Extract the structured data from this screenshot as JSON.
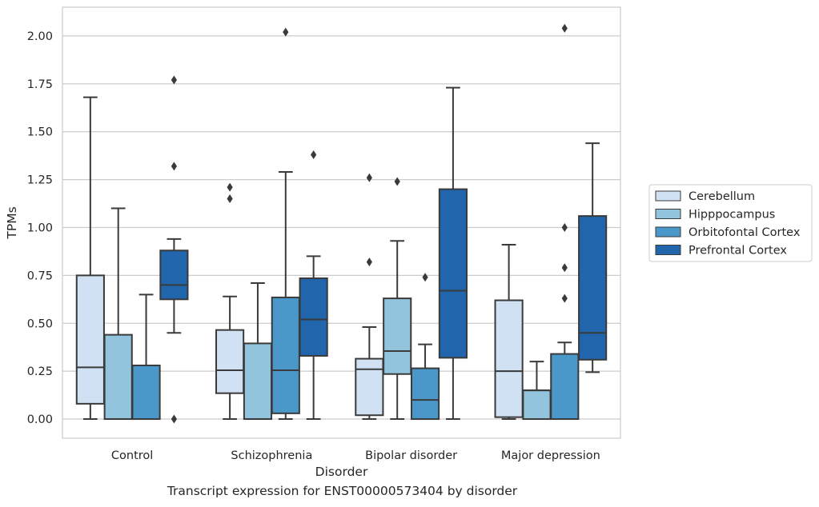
{
  "caption": "Transcript expression for ENST00000573404 by disorder",
  "chart_data": {
    "type": "boxplot",
    "xlabel": "Disorder",
    "ylabel": "TPMs",
    "categories": [
      "Control",
      "Schizophrenia",
      "Bipolar disorder",
      "Major depression"
    ],
    "ylim": [
      -0.1,
      2.15
    ],
    "yticks": [
      "0.00",
      "0.25",
      "0.50",
      "0.75",
      "1.00",
      "1.25",
      "1.50",
      "1.75",
      "2.00"
    ],
    "grid": "horizontal",
    "legend_position": "right",
    "series": [
      {
        "name": "Cerebellum",
        "color": "#cfe1f2",
        "boxes": [
          {
            "whislo": 0.0,
            "q1": 0.08,
            "median": 0.27,
            "q3": 0.75,
            "whishi": 1.68,
            "fliers": []
          },
          {
            "whislo": 0.0,
            "q1": 0.135,
            "median": 0.255,
            "q3": 0.465,
            "whishi": 0.64,
            "fliers": [
              1.15,
              1.21
            ]
          },
          {
            "whislo": 0.0,
            "q1": 0.02,
            "median": 0.26,
            "q3": 0.315,
            "whishi": 0.48,
            "fliers": [
              0.82,
              1.26
            ]
          },
          {
            "whislo": 0.0,
            "q1": 0.01,
            "median": 0.25,
            "q3": 0.62,
            "whishi": 0.91,
            "fliers": []
          }
        ]
      },
      {
        "name": "Hipppocampus",
        "color": "#93c4de",
        "boxes": [
          {
            "whislo": 0.0,
            "q1": 0.0,
            "median": 0.0,
            "q3": 0.44,
            "whishi": 1.1,
            "fliers": []
          },
          {
            "whislo": 0.0,
            "q1": 0.0,
            "median": 0.0,
            "q3": 0.395,
            "whishi": 0.71,
            "fliers": []
          },
          {
            "whislo": 0.0,
            "q1": 0.235,
            "median": 0.355,
            "q3": 0.63,
            "whishi": 0.93,
            "fliers": [
              1.24
            ]
          },
          {
            "whislo": 0.0,
            "q1": 0.0,
            "median": 0.15,
            "q3": 0.15,
            "whishi": 0.3,
            "fliers": []
          }
        ]
      },
      {
        "name": "Orbitofontal Cortex",
        "color": "#4a98c9",
        "boxes": [
          {
            "whislo": 0.0,
            "q1": 0.0,
            "median": 0.0,
            "q3": 0.28,
            "whishi": 0.65,
            "fliers": []
          },
          {
            "whislo": 0.0,
            "q1": 0.03,
            "median": 0.255,
            "q3": 0.635,
            "whishi": 1.29,
            "fliers": [
              2.02
            ]
          },
          {
            "whislo": 0.0,
            "q1": 0.0,
            "median": 0.1,
            "q3": 0.265,
            "whishi": 0.39,
            "fliers": [
              0.74
            ]
          },
          {
            "whislo": 0.0,
            "q1": 0.0,
            "median": 0.0,
            "q3": 0.34,
            "whishi": 0.4,
            "fliers": [
              0.63,
              0.79,
              1.0,
              2.04
            ]
          }
        ]
      },
      {
        "name": "Prefrontal Cortex",
        "color": "#2166ac",
        "boxes": [
          {
            "whislo": 0.45,
            "q1": 0.625,
            "median": 0.7,
            "q3": 0.88,
            "whishi": 0.94,
            "fliers": [
              0.0,
              1.32,
              1.77
            ]
          },
          {
            "whislo": 0.0,
            "q1": 0.33,
            "median": 0.52,
            "q3": 0.735,
            "whishi": 0.85,
            "fliers": [
              1.38
            ]
          },
          {
            "whislo": 0.0,
            "q1": 0.32,
            "median": 0.67,
            "q3": 1.2,
            "whishi": 1.73,
            "fliers": []
          },
          {
            "whislo": 0.245,
            "q1": 0.31,
            "median": 0.45,
            "q3": 1.06,
            "whishi": 1.44,
            "fliers": []
          }
        ]
      }
    ]
  }
}
